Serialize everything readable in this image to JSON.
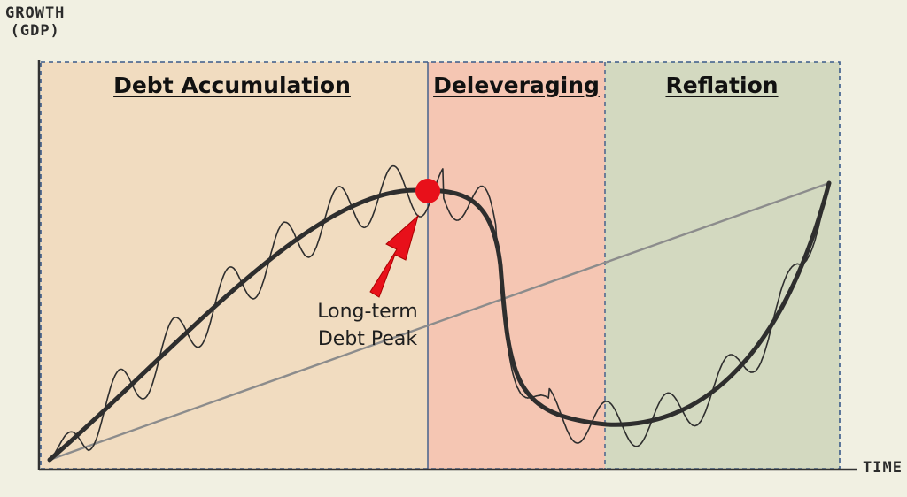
{
  "axes": {
    "y_label_line1": "GROWTH",
    "y_label_line2": "(GDP)",
    "x_label": "TIME"
  },
  "phases": [
    {
      "title": "Debt Accumulation",
      "fill": "#f1dcc0"
    },
    {
      "title": "Deleveraging",
      "fill": "#f5c6b3"
    },
    {
      "title": "Reflation",
      "fill": "#d3d9c0"
    }
  ],
  "annotation": {
    "line1": "Long-term",
    "line2": "Debt Peak"
  },
  "colors": {
    "background": "#f1f0e2",
    "frame_border": "#3a5a8a",
    "curve": "#2e2e2e",
    "trend_line": "#8c8c8c",
    "peak_marker": "#e8101a"
  }
}
